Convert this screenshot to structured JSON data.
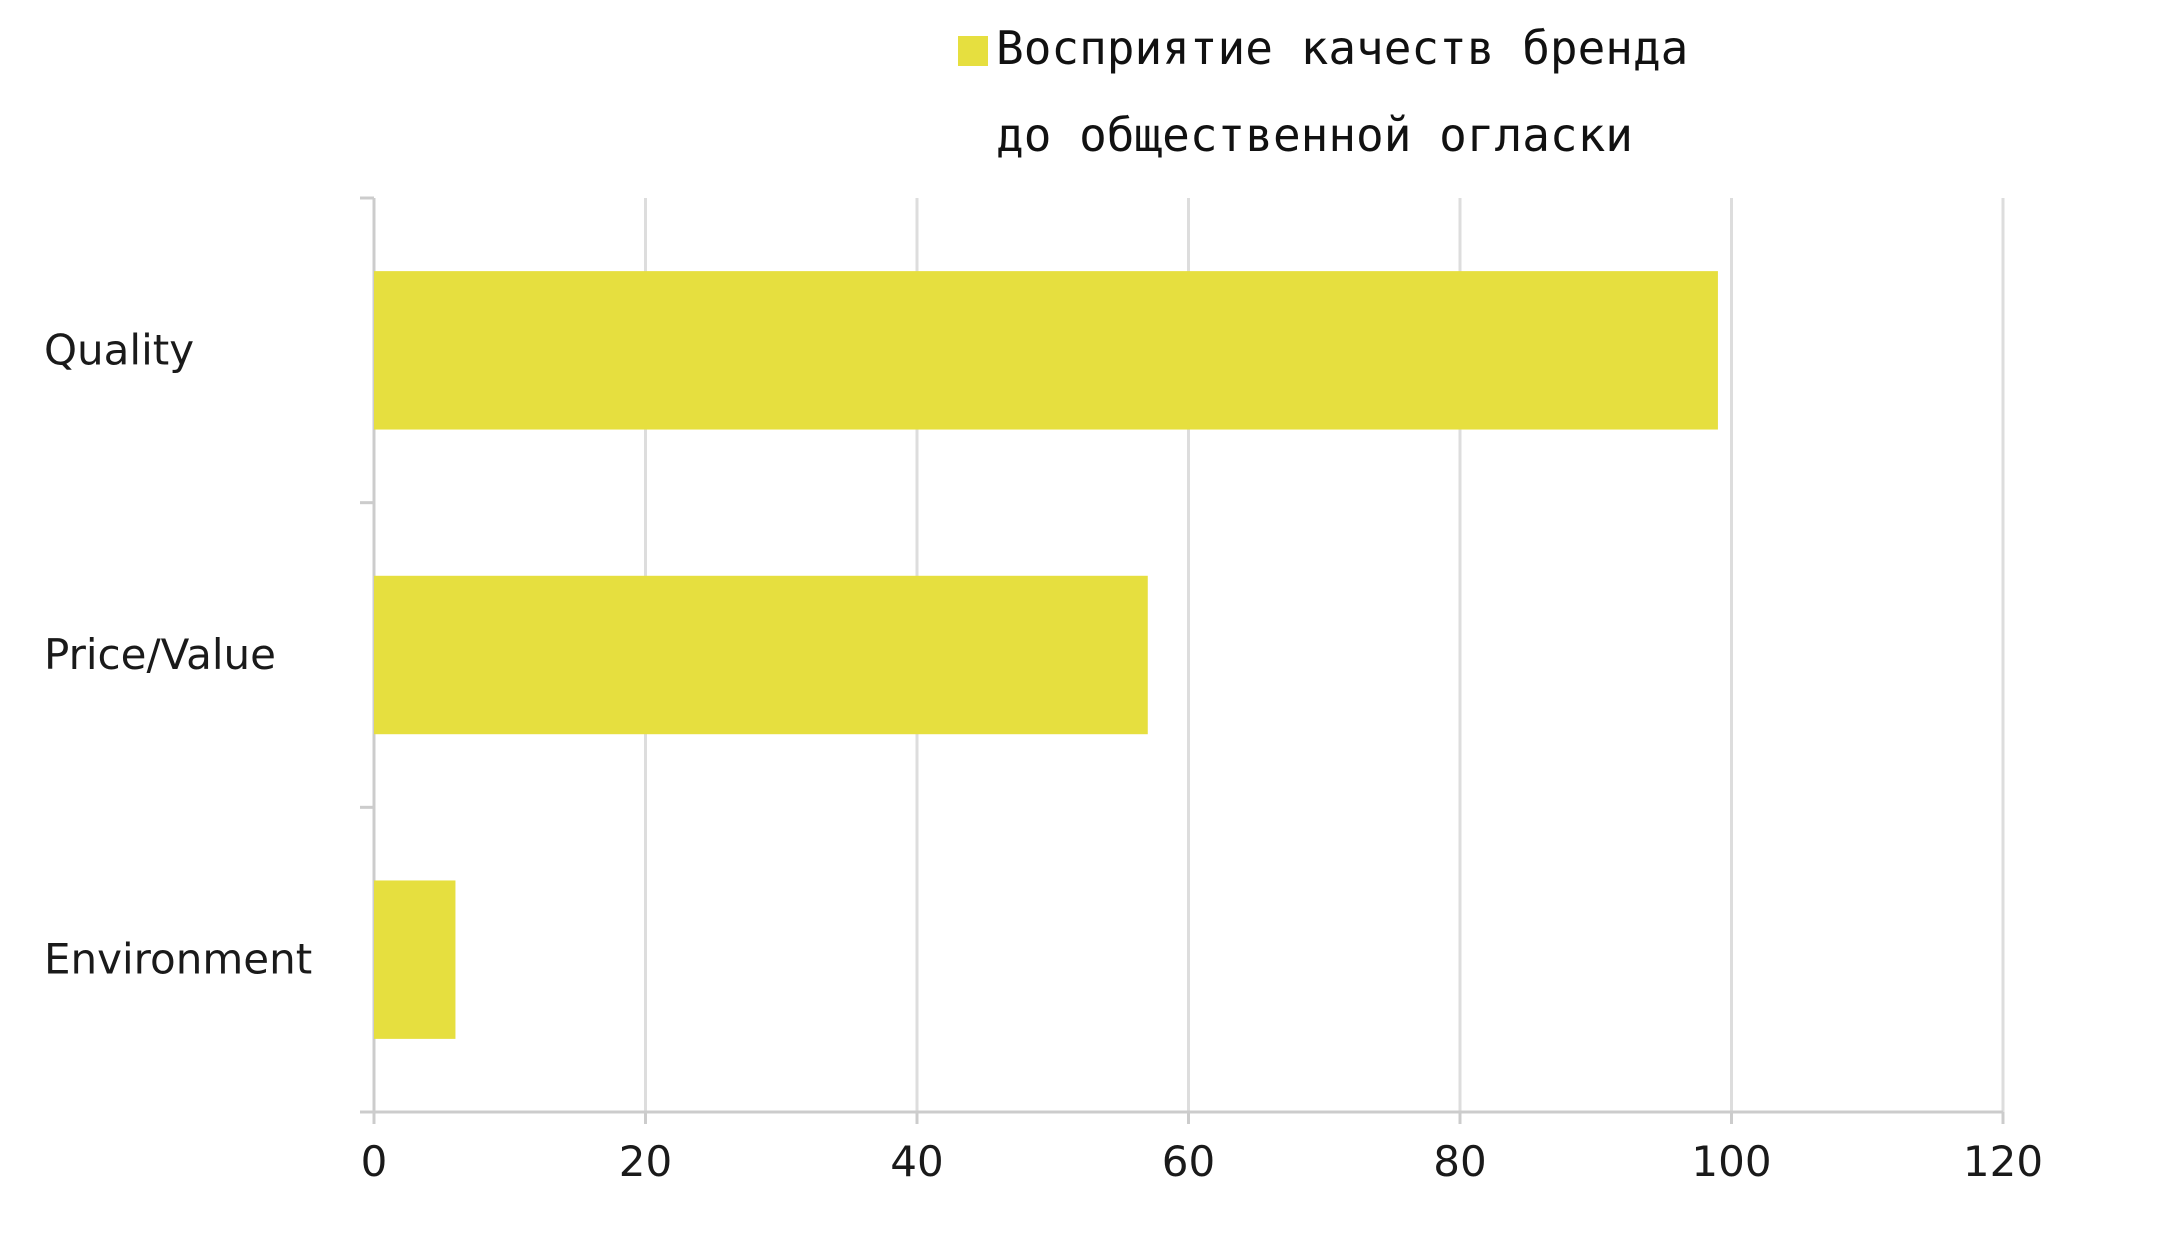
{
  "chart_data": {
    "type": "bar",
    "orientation": "horizontal",
    "categories": [
      "Quality",
      "Price/Value",
      "Environment"
    ],
    "series": [
      {
        "name": "Восприятие качеств бренда до общественной огласки",
        "values": [
          99,
          57,
          6
        ],
        "color": "#e6df3f"
      }
    ],
    "legend": {
      "lines": [
        "Восприятие качеств бренда",
        "до общественной огласки"
      ],
      "position": "top"
    },
    "xlim": [
      0,
      120
    ],
    "xticks": [
      "0",
      "20",
      "40",
      "60",
      "80",
      "100",
      "120"
    ],
    "grid": "vertical",
    "colors": {
      "bar": "#e6df3f",
      "grid": "#dddddd",
      "axis": "#cccccc",
      "text": "#1a1a1a"
    }
  }
}
